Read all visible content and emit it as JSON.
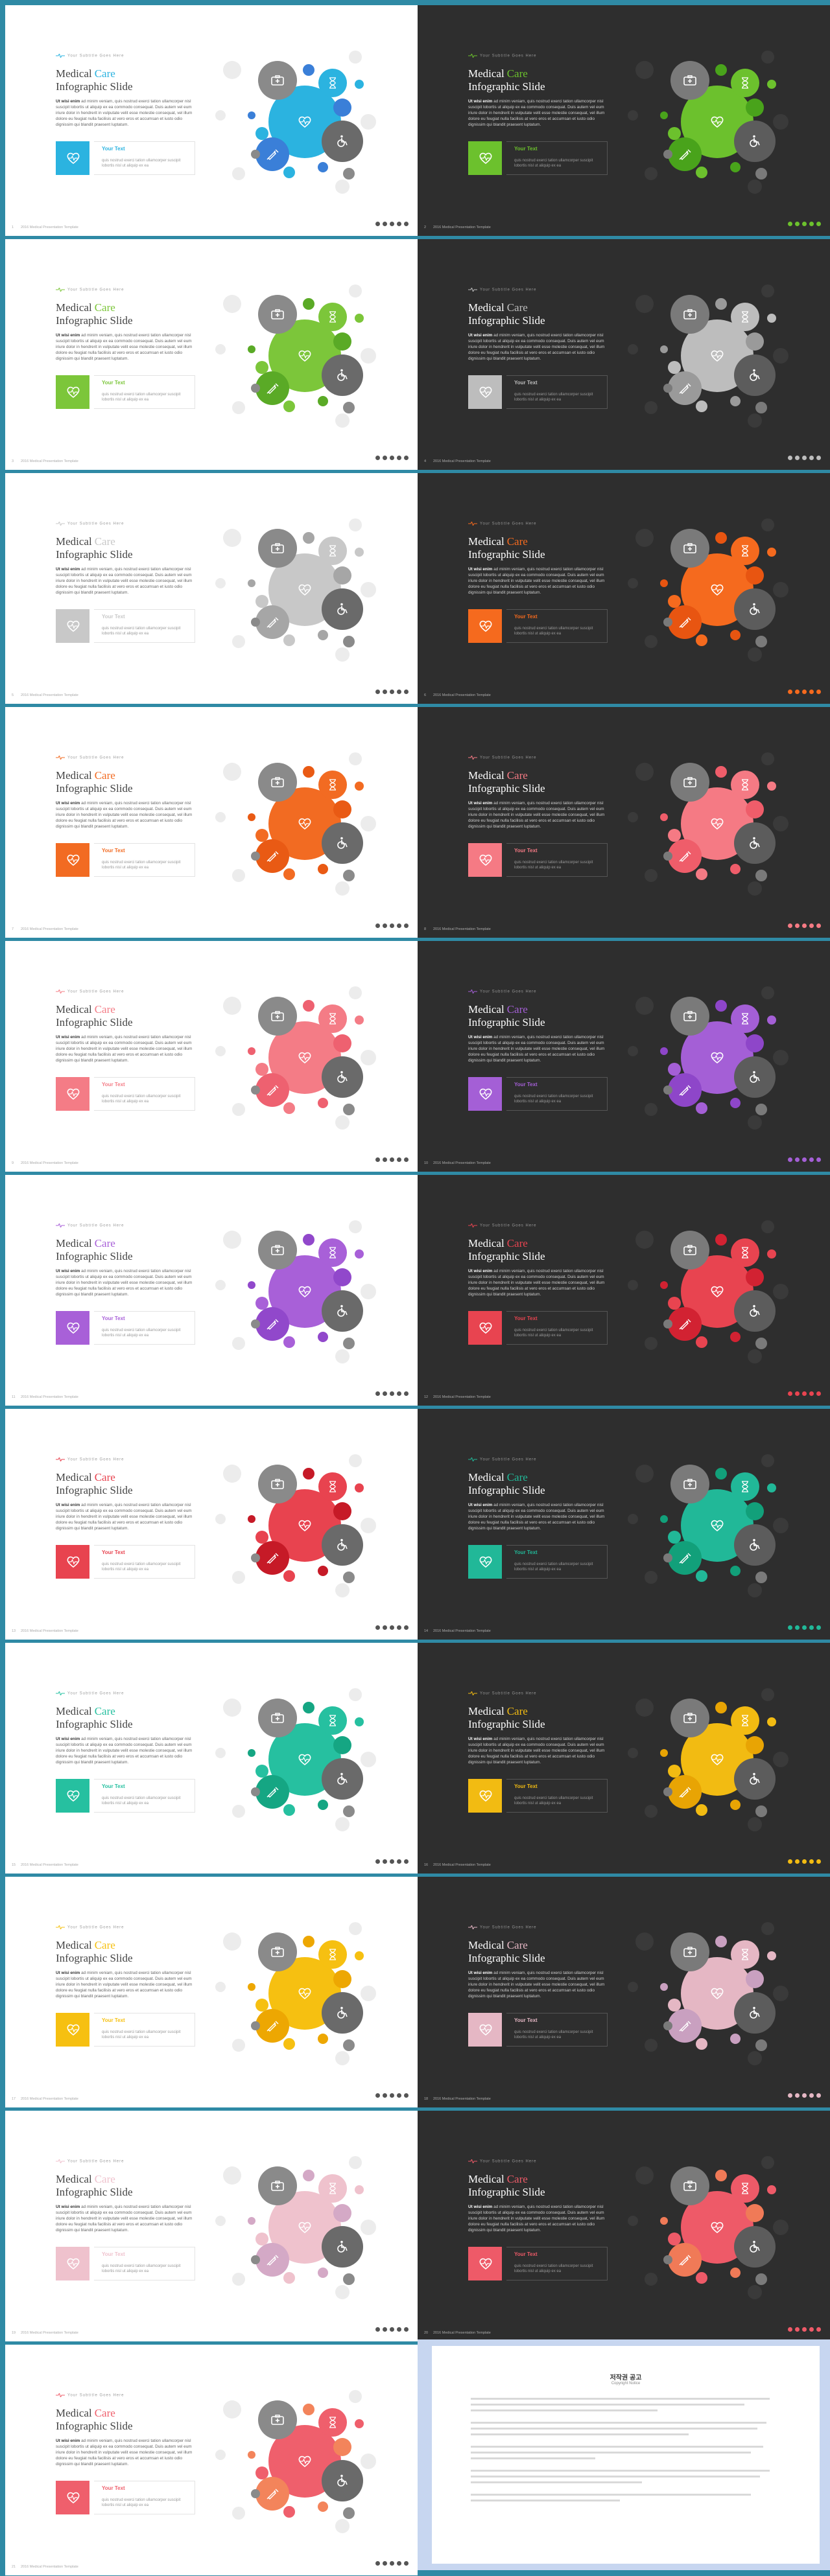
{
  "common": {
    "tagline": "Your Subtitle Goes Here",
    "title_word1": "Medical",
    "title_word2": "Care",
    "title_line2": "Infographic Slide",
    "body_lead": "Ut wisi enim",
    "body_text": "ad minim veniam, quis nostrud exerci tation ullamcorper nisl suscipit lobortis ut aliquip ex ea commodo consequat. Duis autem vel eum iriure dolor in hendrerit in vulputate velit esse molestie consequat, vel illum dolore eu feugiat nulla facilisis at vero eros et accumsan et iusto odio dignissim qui blandit praesent luptatum.",
    "your_text": "Your Text",
    "text_desc": "quis nostrud exerci tation ullamcorper suscipit lobortis nisl ut aliquip ex ea",
    "footer_label": "2016 Medical Presentation Template",
    "nav_dots": 5
  },
  "slides": [
    {
      "page": "1",
      "theme": "light",
      "accent": "#2bb3e0",
      "accent2": "#3a7fd8"
    },
    {
      "page": "2",
      "theme": "dark",
      "accent": "#6cc12d",
      "accent2": "#49a31b"
    },
    {
      "page": "3",
      "theme": "light",
      "accent": "#7cc63a",
      "accent2": "#5aaa26"
    },
    {
      "page": "4",
      "theme": "dark",
      "accent": "#bdbdbd",
      "accent2": "#9a9a9a"
    },
    {
      "page": "5",
      "theme": "light",
      "accent": "#c8c8c8",
      "accent2": "#a6a6a6"
    },
    {
      "page": "6",
      "theme": "dark",
      "accent": "#f56a1e",
      "accent2": "#e85511"
    },
    {
      "page": "7",
      "theme": "light",
      "accent": "#f26b22",
      "accent2": "#e95a14"
    },
    {
      "page": "8",
      "theme": "dark",
      "accent": "#f57a84",
      "accent2": "#ef5d6a"
    },
    {
      "page": "9",
      "theme": "light",
      "accent": "#f47c86",
      "accent2": "#ee6170"
    },
    {
      "page": "10",
      "theme": "dark",
      "accent": "#a45fd6",
      "accent2": "#8e46c9"
    },
    {
      "page": "11",
      "theme": "light",
      "accent": "#a860d8",
      "accent2": "#9148cb"
    },
    {
      "page": "12",
      "theme": "dark",
      "accent": "#e84450",
      "accent2": "#d22232"
    },
    {
      "page": "13",
      "theme": "light",
      "accent": "#e8434f",
      "accent2": "#c61a27"
    },
    {
      "page": "14",
      "theme": "dark",
      "accent": "#21b898",
      "accent2": "#12a07a"
    },
    {
      "page": "15",
      "theme": "light",
      "accent": "#26c0a0",
      "accent2": "#15a683"
    },
    {
      "page": "16",
      "theme": "dark",
      "accent": "#f2bb12",
      "accent2": "#e8a404"
    },
    {
      "page": "17",
      "theme": "light",
      "accent": "#f6c011",
      "accent2": "#eda702"
    },
    {
      "page": "18",
      "theme": "dark",
      "accent": "#e5b7c4",
      "accent2": "#c9a0c0"
    },
    {
      "page": "19",
      "theme": "light",
      "accent": "#efc2cd",
      "accent2": "#d4a9c6"
    },
    {
      "page": "20",
      "theme": "dark",
      "accent": "#ee5a68",
      "accent2": "#f07a57"
    },
    {
      "page": "21",
      "theme": "light",
      "accent": "#ef5f6c",
      "accent2": "#f3845b"
    }
  ],
  "notice": {
    "title": "저작권 공고",
    "subtitle": "Copyright Notice"
  },
  "colors": {
    "frame": "#2f8aa5",
    "circle_dark": "#6b6b6b",
    "circle_darker": "#555555"
  }
}
